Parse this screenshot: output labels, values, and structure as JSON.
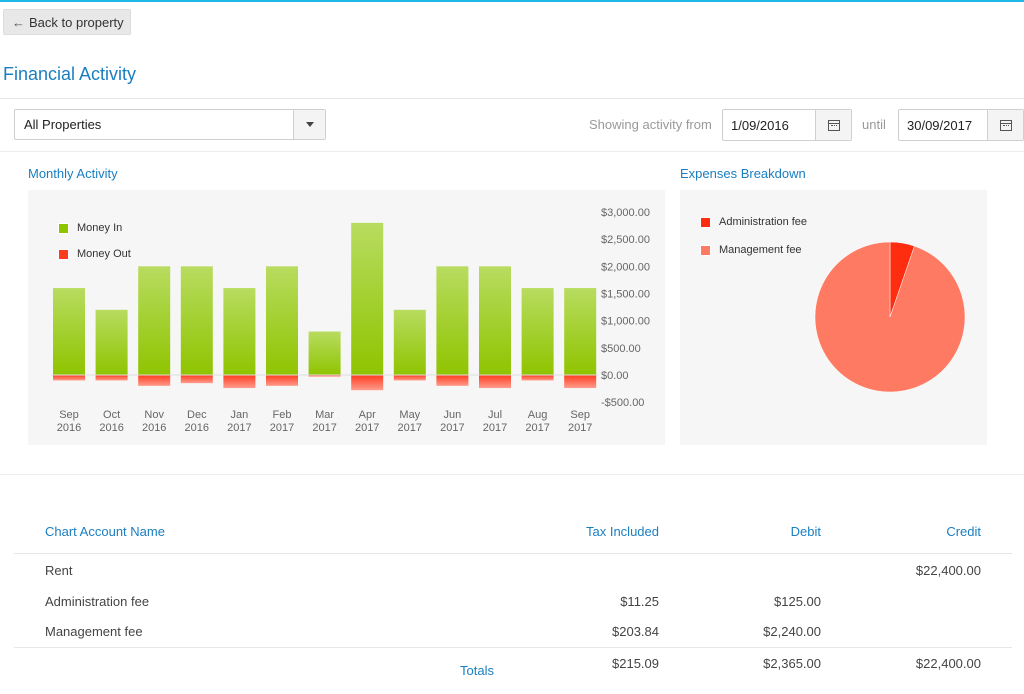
{
  "nav": {
    "back_label": "Back to property"
  },
  "page": {
    "title": "Financial Activity"
  },
  "filters": {
    "property_selected": "All Properties",
    "showing_from_label": "Showing activity from",
    "date_from": "1/09/2016",
    "until_label": "until",
    "date_to": "30/09/2017"
  },
  "monthly": {
    "title": "Monthly Activity",
    "legend": {
      "money_in": "Money In",
      "money_out": "Money Out"
    }
  },
  "expenses": {
    "title": "Expenses Breakdown",
    "legend": {
      "admin": "Administration fee",
      "mgmt": "Management fee"
    }
  },
  "colors": {
    "money_in_top": "#b8dc60",
    "money_in_bottom": "#8fc400",
    "money_out": "#ff3b1f",
    "admin_fee": "#ff2d10",
    "mgmt_fee": "#ff7a63",
    "accent": "#1a7fc1"
  },
  "chart_data": [
    {
      "type": "bar",
      "title": "Monthly Activity",
      "categories": [
        [
          "Sep",
          "2016"
        ],
        [
          "Oct",
          "2016"
        ],
        [
          "Nov",
          "2016"
        ],
        [
          "Dec",
          "2016"
        ],
        [
          "Jan",
          "2017"
        ],
        [
          "Feb",
          "2017"
        ],
        [
          "Mar",
          "2017"
        ],
        [
          "Apr",
          "2017"
        ],
        [
          "May",
          "2017"
        ],
        [
          "Jun",
          "2017"
        ],
        [
          "Jul",
          "2017"
        ],
        [
          "Aug",
          "2017"
        ],
        [
          "Sep",
          "2017"
        ]
      ],
      "series": [
        {
          "name": "Money In",
          "values": [
            1600,
            1200,
            2000,
            2000,
            1600,
            2000,
            800,
            2800,
            1200,
            2000,
            2000,
            1600,
            1600
          ]
        },
        {
          "name": "Money Out",
          "values": [
            -100,
            -100,
            -200,
            -150,
            -240,
            -200,
            -30,
            -280,
            -100,
            -200,
            -240,
            -100,
            -240
          ]
        }
      ],
      "y_ticks": [
        3000,
        2500,
        2000,
        1500,
        1000,
        500,
        0,
        -500
      ],
      "y_tick_labels": [
        "$3,000.00",
        "$2,500.00",
        "$2,000.00",
        "$1,500.00",
        "$1,000.00",
        "$500.00",
        "$0.00",
        "-$500.00"
      ],
      "ylim": [
        -500,
        3000
      ],
      "legend_position": "top-left",
      "grid": false
    },
    {
      "type": "pie",
      "title": "Expenses Breakdown",
      "labels": [
        "Administration fee",
        "Management fee"
      ],
      "values": [
        125.0,
        2240.0
      ],
      "legend_position": "top-left"
    }
  ],
  "table": {
    "headers": {
      "name": "Chart Account Name",
      "tax": "Tax Included",
      "debit": "Debit",
      "credit": "Credit"
    },
    "rows": [
      {
        "name": "Rent",
        "tax": "",
        "debit": "",
        "credit": "$22,400.00"
      },
      {
        "name": "Administration fee",
        "tax": "$11.25",
        "debit": "$125.00",
        "credit": ""
      },
      {
        "name": "Management fee",
        "tax": "$203.84",
        "debit": "$2,240.00",
        "credit": ""
      }
    ],
    "totals": {
      "label": "Totals",
      "tax": "$215.09",
      "debit": "$2,365.00",
      "credit": "$22,400.00"
    }
  }
}
